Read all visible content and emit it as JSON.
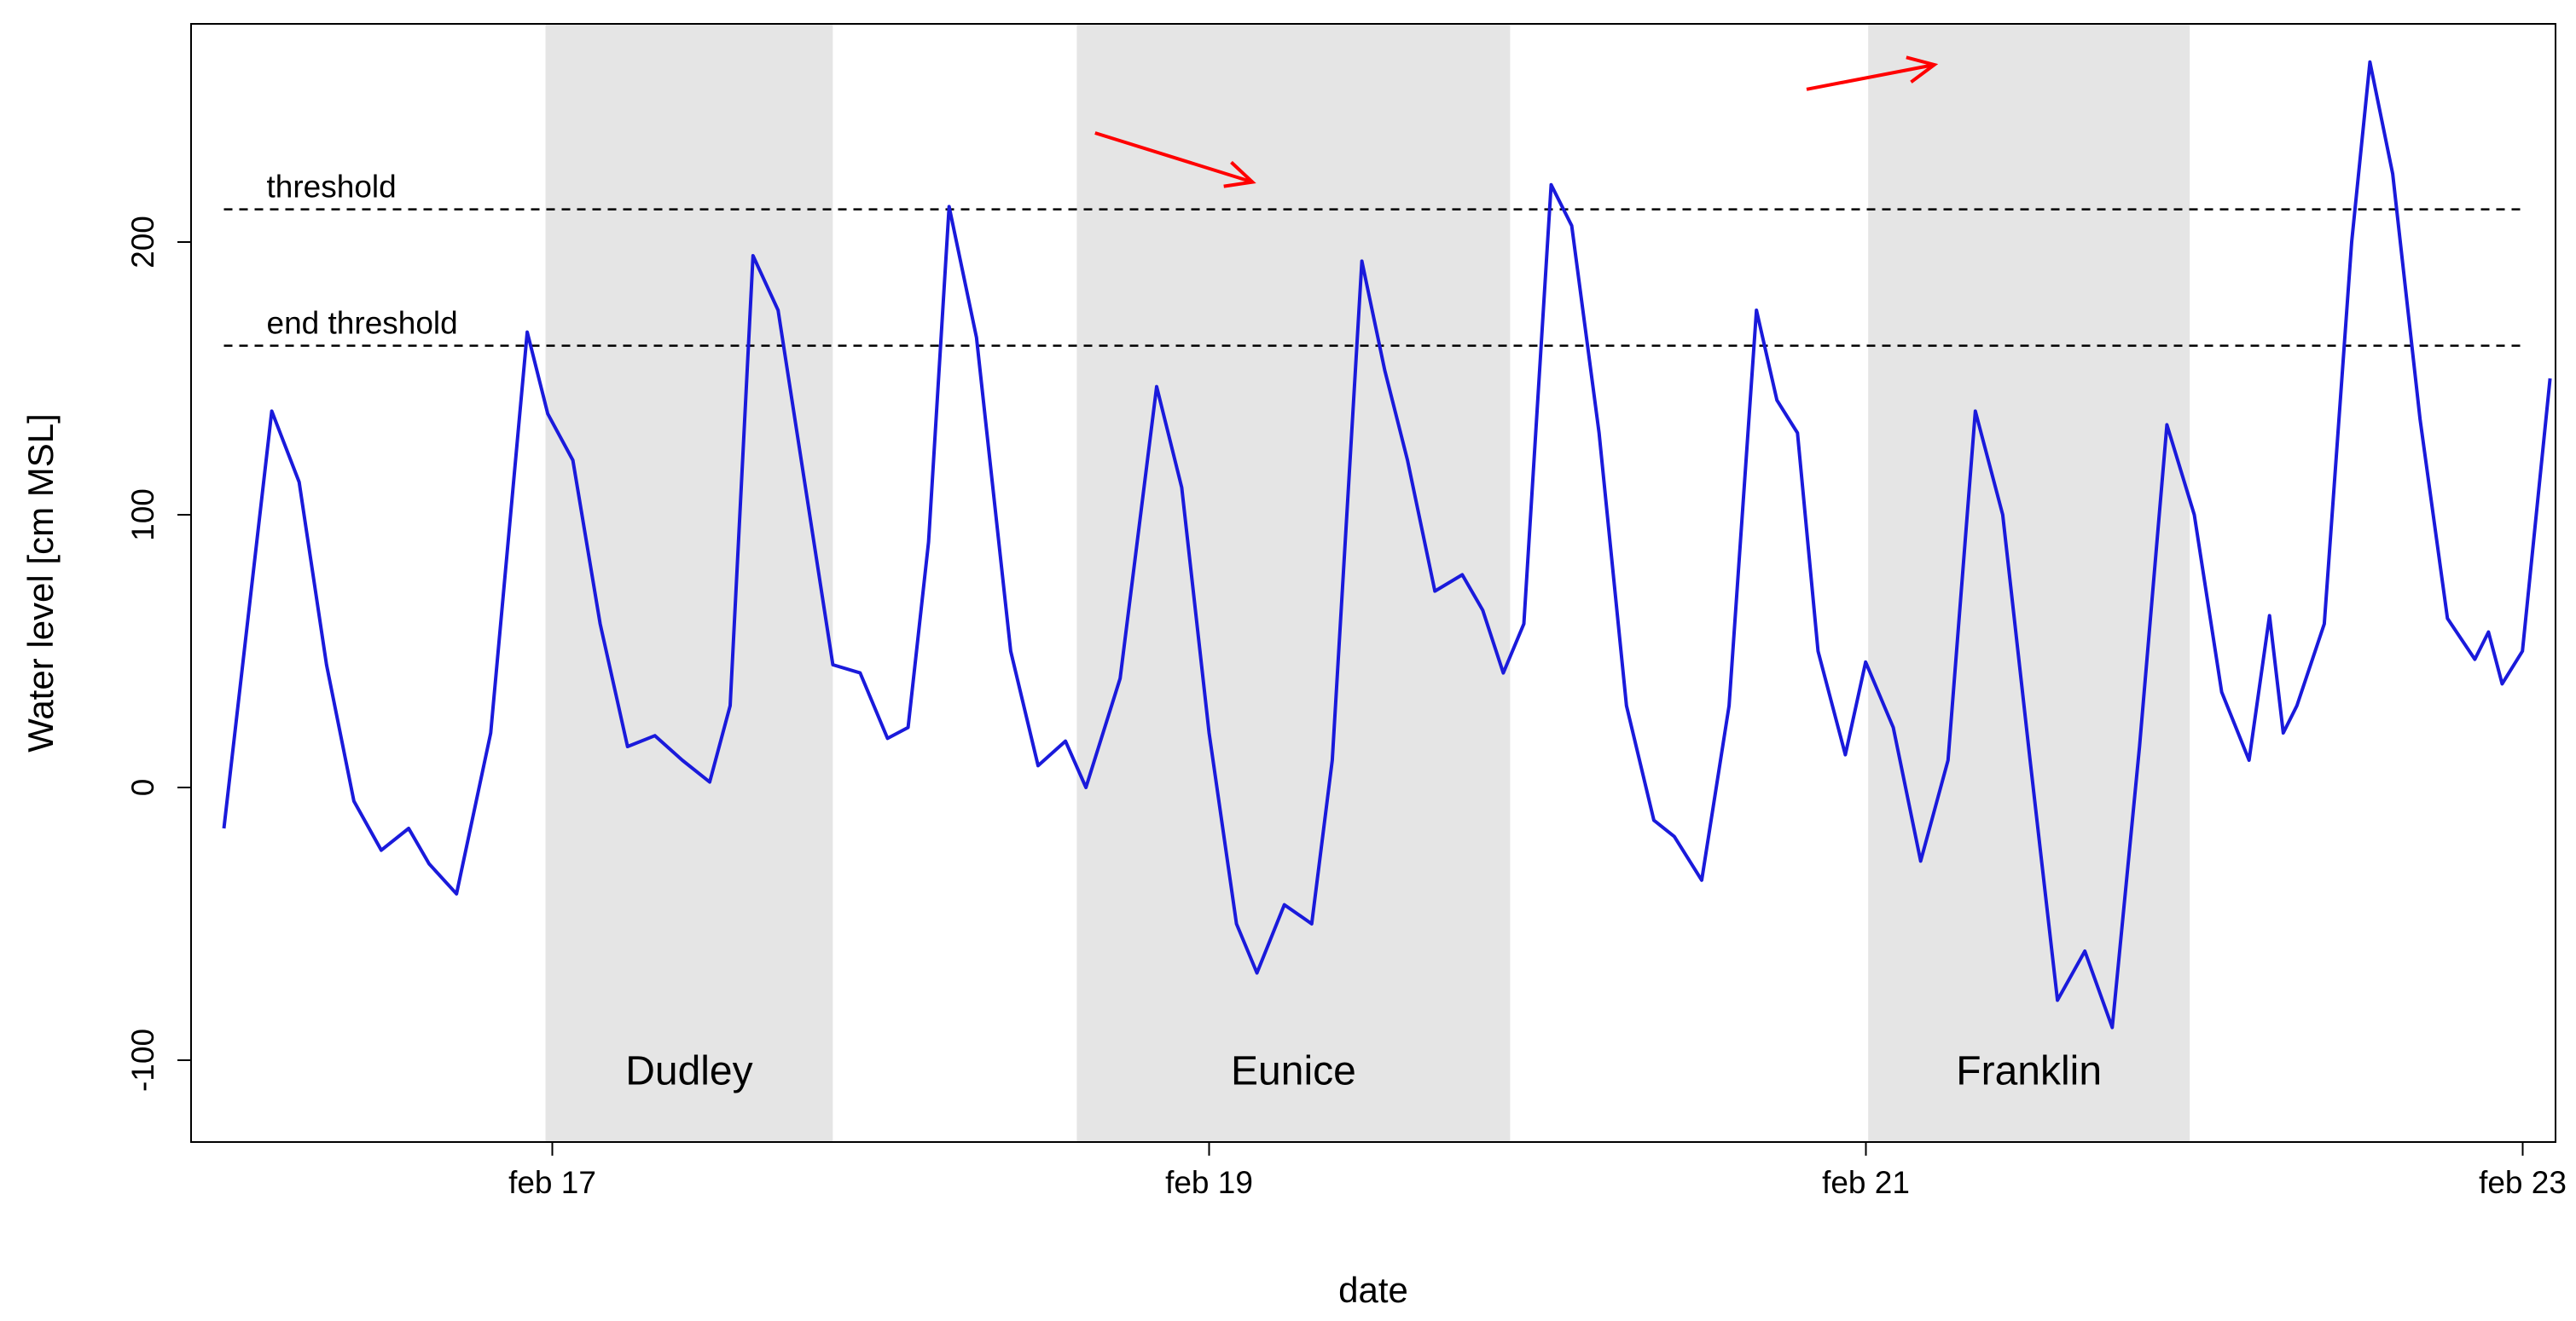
{
  "chart_data": {
    "type": "line",
    "title": "",
    "xlabel": "date",
    "ylabel": "Water level [cm MSL]",
    "xlim": [
      "2022-02-16T00:00",
      "2022-02-23T00:00"
    ],
    "ylim": [
      -130,
      280
    ],
    "x_ticks": [
      {
        "date": "2022-02-17T00:00",
        "label": "feb 17"
      },
      {
        "date": "2022-02-19T00:00",
        "label": "feb 19"
      },
      {
        "date": "2022-02-21T00:00",
        "label": "feb 21"
      },
      {
        "date": "2022-02-23T00:00",
        "label": "feb 23"
      }
    ],
    "y_ticks": [
      {
        "value": -100,
        "label": "-100"
      },
      {
        "value": 0,
        "label": "0"
      },
      {
        "value": 100,
        "label": "100"
      },
      {
        "value": 200,
        "label": "200"
      }
    ],
    "grid": false,
    "colors": {
      "series": "#1a1adb",
      "shade": "#e5e5e5",
      "arrow": "#ff0000",
      "threshold": "#000000"
    },
    "storms": [
      {
        "name": "Dudley",
        "start": "2022-02-16T23:30",
        "end": "2022-02-17T20:30"
      },
      {
        "name": "Eunice",
        "start": "2022-02-18T14:20",
        "end": "2022-02-19T22:00"
      },
      {
        "name": "Franklin",
        "start": "2022-02-21T00:10",
        "end": "2022-02-21T23:40"
      }
    ],
    "thresholds": [
      {
        "label": "threshold",
        "value": 212
      },
      {
        "label": "end threshold",
        "value": 162
      }
    ],
    "arrows": [
      {
        "from": [
          "2022-02-18T15:40",
          240
        ],
        "to": [
          "2022-02-19T03:10",
          222
        ]
      },
      {
        "from": [
          "2022-02-20T19:40",
          256
        ],
        "to": [
          "2022-02-21T05:00",
          265
        ]
      }
    ],
    "series": [
      {
        "values": [
          [
            "2022-02-16T00:00",
            -15
          ],
          [
            "2022-02-16T03:30",
            138
          ],
          [
            "2022-02-16T05:30",
            112
          ],
          [
            "2022-02-16T07:30",
            45
          ],
          [
            "2022-02-16T09:30",
            -5
          ],
          [
            "2022-02-16T11:30",
            -23
          ],
          [
            "2022-02-16T13:30",
            -15
          ],
          [
            "2022-02-16T15:00",
            -28
          ],
          [
            "2022-02-16T17:00",
            -39
          ],
          [
            "2022-02-16T19:30",
            20
          ],
          [
            "2022-02-16T22:10",
            167
          ],
          [
            "2022-02-16T23:40",
            137
          ],
          [
            "2022-02-17T01:30",
            120
          ],
          [
            "2022-02-17T03:30",
            60
          ],
          [
            "2022-02-17T05:30",
            15
          ],
          [
            "2022-02-17T07:30",
            19
          ],
          [
            "2022-02-17T09:30",
            10
          ],
          [
            "2022-02-17T11:30",
            2
          ],
          [
            "2022-02-17T13:00",
            30
          ],
          [
            "2022-02-17T14:40",
            195
          ],
          [
            "2022-02-17T16:30",
            175
          ],
          [
            "2022-02-17T18:30",
            110
          ],
          [
            "2022-02-17T20:30",
            45
          ],
          [
            "2022-02-17T22:30",
            42
          ],
          [
            "2022-02-18T00:30",
            18
          ],
          [
            "2022-02-18T02:00",
            22
          ],
          [
            "2022-02-18T03:30",
            90
          ],
          [
            "2022-02-18T05:00",
            213
          ],
          [
            "2022-02-18T07:00",
            165
          ],
          [
            "2022-02-18T09:30",
            50
          ],
          [
            "2022-02-18T11:30",
            8
          ],
          [
            "2022-02-18T13:30",
            17
          ],
          [
            "2022-02-18T15:00",
            0
          ],
          [
            "2022-02-18T17:30",
            40
          ],
          [
            "2022-02-18T20:10",
            147
          ],
          [
            "2022-02-18T22:00",
            110
          ],
          [
            "2022-02-19T00:00",
            20
          ],
          [
            "2022-02-19T02:00",
            -50
          ],
          [
            "2022-02-19T03:30",
            -68
          ],
          [
            "2022-02-19T05:30",
            -43
          ],
          [
            "2022-02-19T07:30",
            -50
          ],
          [
            "2022-02-19T09:00",
            10
          ],
          [
            "2022-02-19T11:10",
            193
          ],
          [
            "2022-02-19T12:50",
            153
          ],
          [
            "2022-02-19T14:30",
            120
          ],
          [
            "2022-02-19T16:30",
            72
          ],
          [
            "2022-02-19T18:30",
            78
          ],
          [
            "2022-02-19T20:00",
            65
          ],
          [
            "2022-02-19T21:30",
            42
          ],
          [
            "2022-02-19T23:00",
            60
          ],
          [
            "2022-02-20T01:00",
            221
          ],
          [
            "2022-02-20T02:30",
            206
          ],
          [
            "2022-02-20T04:30",
            130
          ],
          [
            "2022-02-20T06:30",
            30
          ],
          [
            "2022-02-20T08:30",
            -12
          ],
          [
            "2022-02-20T10:00",
            -18
          ],
          [
            "2022-02-20T12:00",
            -34
          ],
          [
            "2022-02-20T14:00",
            30
          ],
          [
            "2022-02-20T16:00",
            175
          ],
          [
            "2022-02-20T17:30",
            142
          ],
          [
            "2022-02-20T19:00",
            130
          ],
          [
            "2022-02-20T20:30",
            50
          ],
          [
            "2022-02-20T22:30",
            12
          ],
          [
            "2022-02-20T23:59",
            46
          ],
          [
            "2022-02-21T02:00",
            22
          ],
          [
            "2022-02-21T04:00",
            -27
          ],
          [
            "2022-02-21T06:00",
            10
          ],
          [
            "2022-02-21T08:00",
            138
          ],
          [
            "2022-02-21T10:00",
            100
          ],
          [
            "2022-02-21T12:00",
            10
          ],
          [
            "2022-02-21T14:00",
            -78
          ],
          [
            "2022-02-21T16:00",
            -60
          ],
          [
            "2022-02-21T18:00",
            -88
          ],
          [
            "2022-02-21T20:00",
            15
          ],
          [
            "2022-02-21T22:00",
            133
          ],
          [
            "2022-02-22T00:00",
            100
          ],
          [
            "2022-02-22T02:00",
            35
          ],
          [
            "2022-02-22T04:00",
            10
          ],
          [
            "2022-02-22T05:30",
            63
          ],
          [
            "2022-02-22T06:30",
            20
          ],
          [
            "2022-02-22T07:30",
            30
          ],
          [
            "2022-02-22T09:30",
            60
          ],
          [
            "2022-02-22T11:30",
            200
          ],
          [
            "2022-02-22T12:50",
            266
          ],
          [
            "2022-02-22T14:30",
            225
          ],
          [
            "2022-02-22T16:30",
            135
          ],
          [
            "2022-02-22T18:30",
            62
          ],
          [
            "2022-02-22T20:30",
            47
          ],
          [
            "2022-02-22T21:30",
            57
          ],
          [
            "2022-02-22T22:30",
            38
          ],
          [
            "2022-02-22T23:59",
            50
          ],
          [
            "2022-02-23T02:00",
            150
          ]
        ]
      }
    ]
  }
}
